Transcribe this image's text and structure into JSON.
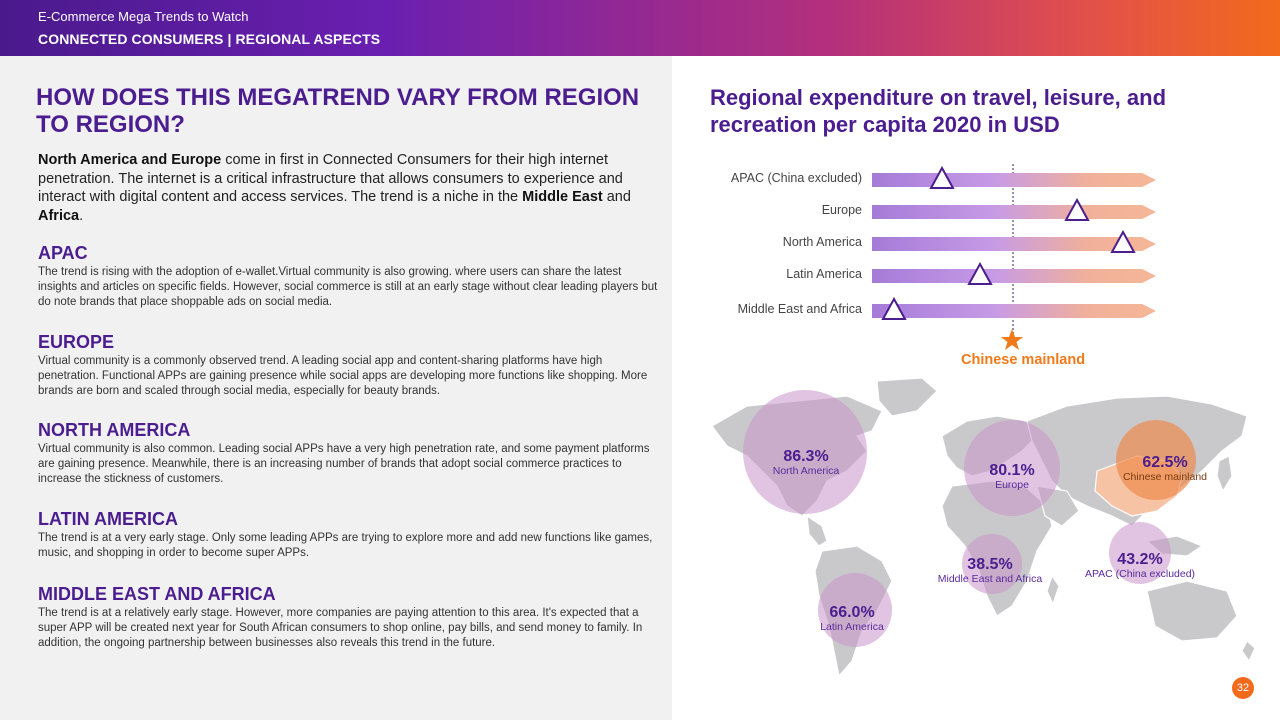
{
  "header": {
    "kicker": "E-Commerce Mega Trends to Watch",
    "section": "CONNECTED CONSUMERS | REGIONAL ASPECTS"
  },
  "left": {
    "title": "HOW DOES THIS MEGATREND VARY FROM REGION TO REGION?",
    "intro": {
      "p1_bold": "North America and Europe",
      "p1_rest": " come in first in Connected Consumers for their high internet penetration. The internet is a critical infrastructure that allows consumers to experience and interact with digital content and access services. The trend is a niche in the ",
      "p1_bold2": "Middle East",
      "p1_and": " and ",
      "p1_bold3": "Africa",
      "p1_end": "."
    },
    "regions": [
      {
        "heading": "APAC",
        "text": "The trend is rising with the adoption of e-wallet.Virtual community is also growing. where users can share the latest insights and articles on specific fields. However, social commerce is still at an early stage without clear leading players but do note brands that place shoppable ads on social media."
      },
      {
        "heading": "EUROPE",
        "text": "Virtual community is a commonly observed trend. A leading social app and content-sharing platforms have high penetration. Functional APPs are gaining presence while social apps are developing more functions like shopping. More brands are born and scaled through social media, especially for beauty brands."
      },
      {
        "heading": "NORTH AMERICA",
        "text": "Virtual community is also common. Leading social APPs have a very high penetration rate, and some payment platforms are gaining presence. Meanwhile, there is an increasing number of brands that adopt social commerce practices to increase the stickness of customers."
      },
      {
        "heading": "LATIN AMERICA",
        "text": "The trend is at a very early stage. Only some leading APPs are trying to explore more and add new functions like games, music, and shopping in order to become super APPs."
      },
      {
        "heading": "MIDDLE EAST AND AFRICA",
        "text": "The trend is at a relatively early stage. However, more companies are paying attention to this area. It's expected that a super APP will be created next year for South African consumers to shop online, pay bills, and send money to family. In addition, the ongoing partnership between businesses also reveals this trend in the future."
      }
    ]
  },
  "chart_data": {
    "type": "bar",
    "title": "Regional expenditure on travel, leisure, and recreation per capita 2020 in USD",
    "categories": [
      "APAC (China excluded)",
      "Europe",
      "North America",
      "Latin America",
      "Middle East and Africa"
    ],
    "relative_position": [
      0.26,
      0.76,
      0.93,
      0.4,
      0.08
    ],
    "reference": {
      "name": "Chinese mainland",
      "relative_position": 0.52
    }
  },
  "map": {
    "bubbles": [
      {
        "pct": "86.3%",
        "label": "North America"
      },
      {
        "pct": "80.1%",
        "label": "Europe"
      },
      {
        "pct": "62.5%",
        "label": "Chinese mainland"
      },
      {
        "pct": "38.5%",
        "label": "Middle East and Africa"
      },
      {
        "pct": "43.2%",
        "label": "APAC (China excluded)"
      },
      {
        "pct": "66.0%",
        "label": "Latin America"
      }
    ]
  },
  "footer": {
    "page": "32"
  },
  "colors": {
    "accent_purple": "#4b1d8f",
    "accent_orange": "#f26a1c"
  }
}
